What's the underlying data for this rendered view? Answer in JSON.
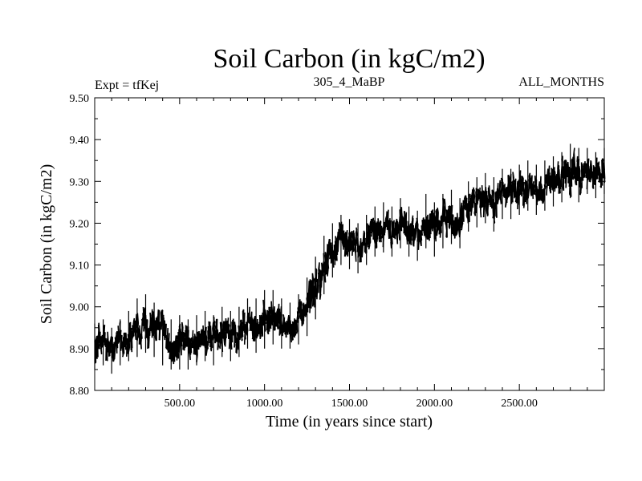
{
  "chart_data": {
    "type": "line",
    "title": "Soil Carbon (in kgC/m2)",
    "subtitle_left": "Expt = tfKej",
    "subtitle_center": "305_4_MaBP",
    "subtitle_right": "ALL_MONTHS",
    "xlabel": "Time (in years since start)",
    "ylabel": "Soil Carbon (in kgC/m2)",
    "xlim": [
      0,
      3000
    ],
    "ylim": [
      8.8,
      9.5
    ],
    "x_ticks": [
      500,
      1000,
      1500,
      2000,
      2500
    ],
    "x_tick_labels": [
      "500.00",
      "1000.00",
      "1500.00",
      "2000.00",
      "2500.00"
    ],
    "y_ticks": [
      8.8,
      8.9,
      9.0,
      9.1,
      9.2,
      9.3,
      9.4,
      9.5
    ],
    "y_tick_labels": [
      "8.80",
      "8.90",
      "9.00",
      "9.10",
      "9.20",
      "9.30",
      "9.40",
      "9.50"
    ],
    "grid": false,
    "line_color": "#000000",
    "series": [
      {
        "x": [
          0,
          50,
          100,
          150,
          200,
          250,
          300,
          350,
          400,
          450,
          500,
          550,
          600,
          650,
          700,
          750,
          800,
          850,
          900,
          950,
          1000,
          1050,
          1100,
          1150,
          1200,
          1250,
          1300,
          1350,
          1400,
          1450,
          1500,
          1550,
          1600,
          1650,
          1700,
          1750,
          1800,
          1850,
          1900,
          1950,
          2000,
          2050,
          2100,
          2150,
          2200,
          2250,
          2300,
          2350,
          2400,
          2450,
          2500,
          2550,
          2600,
          2650,
          2700,
          2750,
          2800,
          2850,
          2900,
          2950,
          3000
        ],
        "mean": [
          8.91,
          8.92,
          8.9,
          8.92,
          8.93,
          8.95,
          8.96,
          8.95,
          8.93,
          8.91,
          8.92,
          8.91,
          8.92,
          8.93,
          8.92,
          8.94,
          8.93,
          8.94,
          8.96,
          8.95,
          8.97,
          8.97,
          8.96,
          8.95,
          8.97,
          9.0,
          9.05,
          9.1,
          9.14,
          9.16,
          9.15,
          9.14,
          9.16,
          9.18,
          9.19,
          9.18,
          9.2,
          9.18,
          9.17,
          9.2,
          9.19,
          9.2,
          9.21,
          9.2,
          9.24,
          9.25,
          9.26,
          9.24,
          9.27,
          9.27,
          9.28,
          9.29,
          9.28,
          9.29,
          9.3,
          9.31,
          9.32,
          9.31,
          9.32,
          9.31,
          9.32
        ],
        "low": [
          8.85,
          8.86,
          8.84,
          8.86,
          8.87,
          8.88,
          8.89,
          8.88,
          8.86,
          8.85,
          8.85,
          8.85,
          8.86,
          8.87,
          8.86,
          8.88,
          8.87,
          8.88,
          8.9,
          8.89,
          8.9,
          8.91,
          8.9,
          8.9,
          8.91,
          8.93,
          8.97,
          9.03,
          9.07,
          9.1,
          9.09,
          9.08,
          9.1,
          9.12,
          9.13,
          9.12,
          9.14,
          9.12,
          9.11,
          9.14,
          9.12,
          9.14,
          9.15,
          9.14,
          9.18,
          9.19,
          9.2,
          9.18,
          9.21,
          9.21,
          9.22,
          9.23,
          9.22,
          9.23,
          9.24,
          9.25,
          9.26,
          9.25,
          9.27,
          9.26,
          9.27
        ],
        "high": [
          8.96,
          8.97,
          8.95,
          8.97,
          8.99,
          9.02,
          9.03,
          9.01,
          8.99,
          8.97,
          8.98,
          8.97,
          8.98,
          8.99,
          8.98,
          9.0,
          8.99,
          9.0,
          9.02,
          9.02,
          9.04,
          9.04,
          9.02,
          9.01,
          9.03,
          9.07,
          9.12,
          9.17,
          9.2,
          9.22,
          9.21,
          9.2,
          9.22,
          9.24,
          9.25,
          9.24,
          9.26,
          9.24,
          9.23,
          9.27,
          9.25,
          9.27,
          9.28,
          9.26,
          9.3,
          9.31,
          9.32,
          9.31,
          9.33,
          9.33,
          9.34,
          9.35,
          9.34,
          9.35,
          9.36,
          9.37,
          9.39,
          9.38,
          9.38,
          9.37,
          9.38
        ]
      }
    ]
  }
}
